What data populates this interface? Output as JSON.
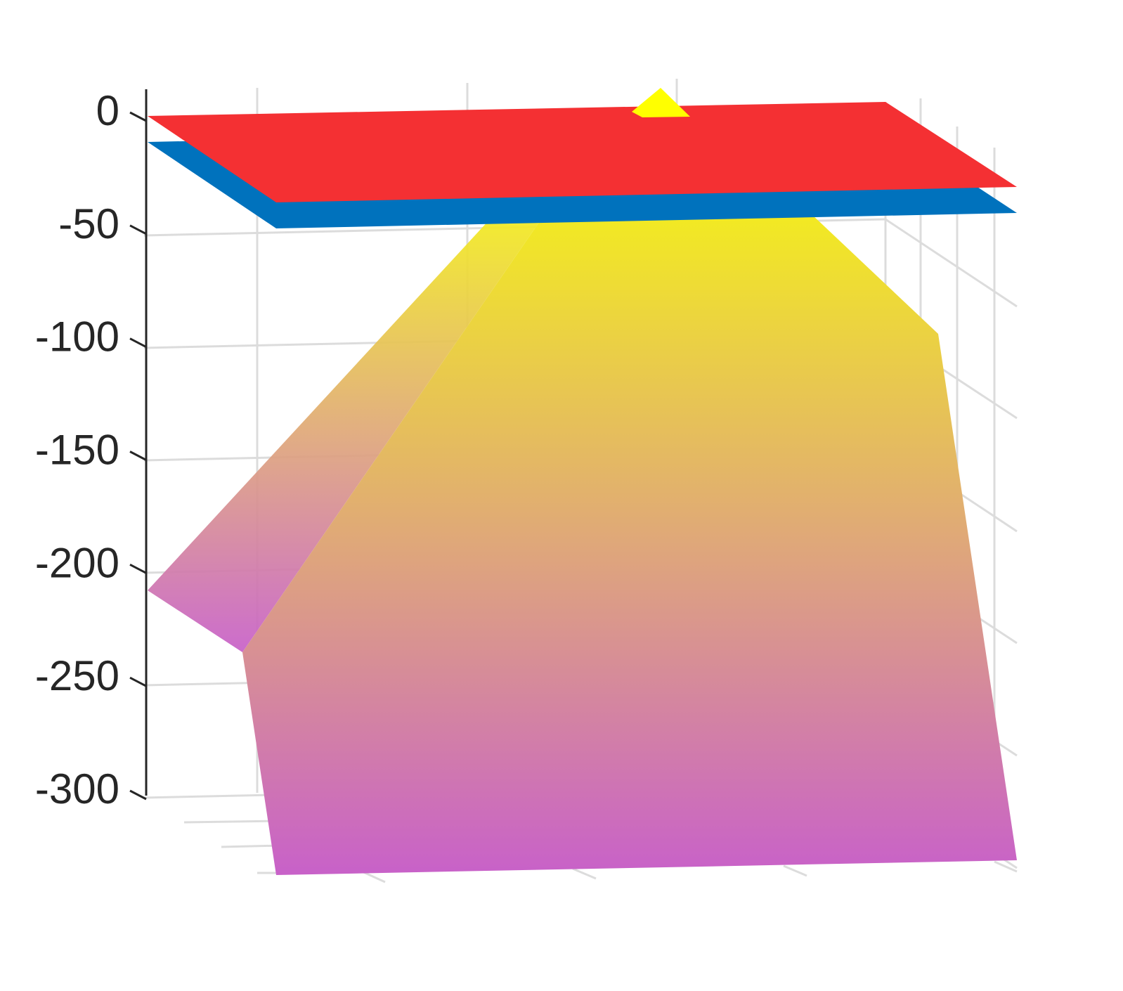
{
  "chart_data": {
    "type": "surface3d",
    "zlim": [
      -300,
      0
    ],
    "z_ticks": [
      0,
      -50,
      -100,
      -150,
      -200,
      -250,
      -300
    ],
    "z_tick_labels": [
      "0",
      "-50",
      "-100",
      "-150",
      "-200",
      "-250",
      "-300"
    ],
    "grid": true,
    "colors": {
      "top_plane": "#f43033",
      "second_plane": "#0072bd",
      "surface_top": "#f2ea22",
      "surface_mid": "#dfa77a",
      "surface_bottom": "#c861c9",
      "peak": "#ffff00"
    },
    "surfaces": [
      {
        "name": "",
        "kind": "plane",
        "z": 0
      },
      {
        "name": "",
        "kind": "plane",
        "z": -12
      },
      {
        "name": "",
        "kind": "surface",
        "z_range": [
          -335,
          1
        ]
      }
    ]
  }
}
